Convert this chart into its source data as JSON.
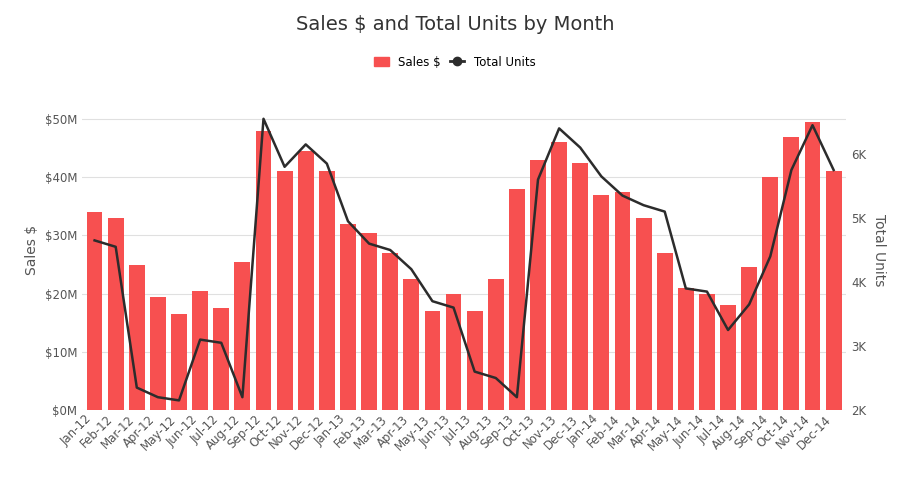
{
  "title": "Sales $ and Total Units by Month",
  "legend_labels": [
    "Sales $",
    "Total Units"
  ],
  "bar_color": "#F75050",
  "line_color": "#2C2C2C",
  "background_color": "#FFFFFF",
  "ylabel_left": "Sales $",
  "ylabel_right": "Total Units",
  "categories": [
    "Jan-12",
    "Feb-12",
    "Mar-12",
    "Apr-12",
    "May-12",
    "Jun-12",
    "Jul-12",
    "Aug-12",
    "Sep-12",
    "Oct-12",
    "Nov-12",
    "Dec-12",
    "Jan-13",
    "Feb-13",
    "Mar-13",
    "Apr-13",
    "May-13",
    "Jun-13",
    "Jul-13",
    "Aug-13",
    "Sep-13",
    "Oct-13",
    "Nov-13",
    "Dec-13",
    "Jan-14",
    "Feb-14",
    "Mar-14",
    "Apr-14",
    "May-14",
    "Jun-14",
    "Jul-14",
    "Aug-14",
    "Sep-14",
    "Oct-14",
    "Nov-14",
    "Dec-14"
  ],
  "sales": [
    34000000,
    33000000,
    25000000,
    19500000,
    16500000,
    20500000,
    17500000,
    25500000,
    48000000,
    41000000,
    44500000,
    41000000,
    32000000,
    30500000,
    27000000,
    22500000,
    17000000,
    20000000,
    17000000,
    22500000,
    38000000,
    43000000,
    46000000,
    42500000,
    37000000,
    37500000,
    33000000,
    27000000,
    21000000,
    20000000,
    18000000,
    24500000,
    40000000,
    47000000,
    49500000,
    41000000
  ],
  "total_units": [
    4650,
    4550,
    2350,
    2200,
    2150,
    3100,
    3050,
    2200,
    6550,
    5800,
    6150,
    5850,
    4950,
    4600,
    4500,
    4200,
    3700,
    3600,
    2600,
    2500,
    2200,
    5600,
    6400,
    6100,
    5650,
    5350,
    5200,
    5100,
    3900,
    3850,
    3250,
    3650,
    4400,
    5750,
    6450,
    5750
  ],
  "ylim_left": [
    0,
    55000000
  ],
  "ylim_right": [
    2000,
    7000
  ],
  "yticks_left": [
    0,
    10000000,
    20000000,
    30000000,
    40000000,
    50000000
  ],
  "yticks_right": [
    2000,
    3000,
    4000,
    5000,
    6000
  ],
  "grid_color": "#E0E0E0",
  "title_fontsize": 14,
  "tick_fontsize": 8.5,
  "label_fontsize": 10,
  "fig_width": 9.1,
  "fig_height": 5.0
}
